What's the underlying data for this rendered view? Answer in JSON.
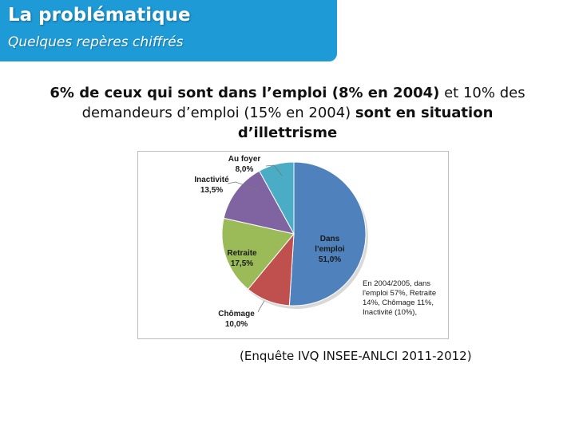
{
  "header": {
    "title": "La problématique",
    "subtitle": "Quelques repères chiffrés"
  },
  "headline": {
    "part1": "6% de ceux qui sont dans l’emploi (8% en 2004)",
    "part2": " et 10% des demandeurs d’emploi (15% en 2004) ",
    "part3": "sont en situation d’illettrisme"
  },
  "source": "(Enquête IVQ INSEE-ANLCI 2011-2012)",
  "chart_data": {
    "type": "pie",
    "title": "",
    "slices": [
      {
        "name": "Dans l'emploi",
        "value": 51.0,
        "label": "51,0%",
        "color": "#4f81bd"
      },
      {
        "name": "Chômage",
        "value": 10.0,
        "label": "10,0%",
        "color": "#c0504d"
      },
      {
        "name": "Retraite",
        "value": 17.5,
        "label": "17,5%",
        "color": "#9bbb59"
      },
      {
        "name": "Inactivité",
        "value": 13.5,
        "label": "13,5%",
        "color": "#8064a2"
      },
      {
        "name": "Au foyer",
        "value": 8.0,
        "label": "8,0%",
        "color": "#4bacc6"
      }
    ],
    "annotation": [
      "En 2004/2005, dans",
      "l'emploi 57%, Retraite",
      "14%, Chômage 11%,",
      "Inactivité (10%),"
    ]
  }
}
